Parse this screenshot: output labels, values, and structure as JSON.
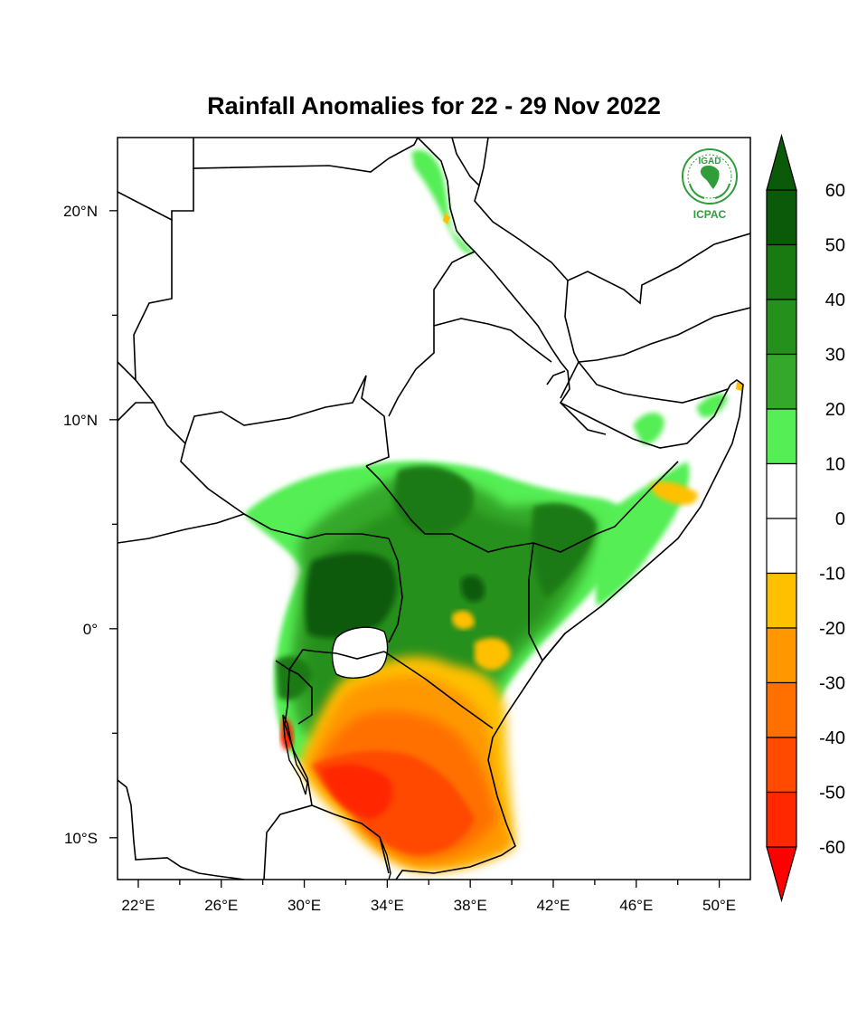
{
  "title": "Rainfall Anomalies for 22 - 29 Nov 2022",
  "map": {
    "lon_range": [
      21,
      51.5
    ],
    "lat_range": [
      -12,
      23.5
    ],
    "x_ticks": [
      {
        "lon": 22,
        "label": "22°E"
      },
      {
        "lon": 24
      },
      {
        "lon": 26,
        "label": "26°E"
      },
      {
        "lon": 28
      },
      {
        "lon": 30,
        "label": "30°E"
      },
      {
        "lon": 32
      },
      {
        "lon": 34,
        "label": "34°E"
      },
      {
        "lon": 36
      },
      {
        "lon": 38,
        "label": "38°E"
      },
      {
        "lon": 40
      },
      {
        "lon": 42,
        "label": "42°E"
      },
      {
        "lon": 44
      },
      {
        "lon": 46,
        "label": "46°E"
      },
      {
        "lon": 48
      },
      {
        "lon": 50,
        "label": "50°E"
      }
    ],
    "y_ticks": [
      {
        "lat": 20,
        "label": "20°N"
      },
      {
        "lat": 15
      },
      {
        "lat": 10,
        "label": "10°N"
      },
      {
        "lat": 5
      },
      {
        "lat": 0,
        "label": "0°"
      },
      {
        "lat": -5
      },
      {
        "lat": -10,
        "label": "10°S"
      }
    ]
  },
  "colorbar": {
    "levels": [
      "60",
      "50",
      "40",
      "30",
      "20",
      "10",
      "0",
      "-10",
      "-20",
      "-30",
      "-40",
      "-50",
      "-60"
    ],
    "colors": [
      "#0a5a0a",
      "#1a7a12",
      "#26901c",
      "#34a82a",
      "#55ee55",
      "#ffffff",
      "#ffffff",
      "#ffc000",
      "#ff9800",
      "#ff7000",
      "#ff4a00",
      "#ff2800"
    ],
    "top_arrow_color": "#0a5a0a",
    "bottom_arrow_color": "#ff0000"
  },
  "logo": {
    "top_text": "IGAD",
    "bottom_text": "ICPAC",
    "color": "#2e9d3a"
  }
}
